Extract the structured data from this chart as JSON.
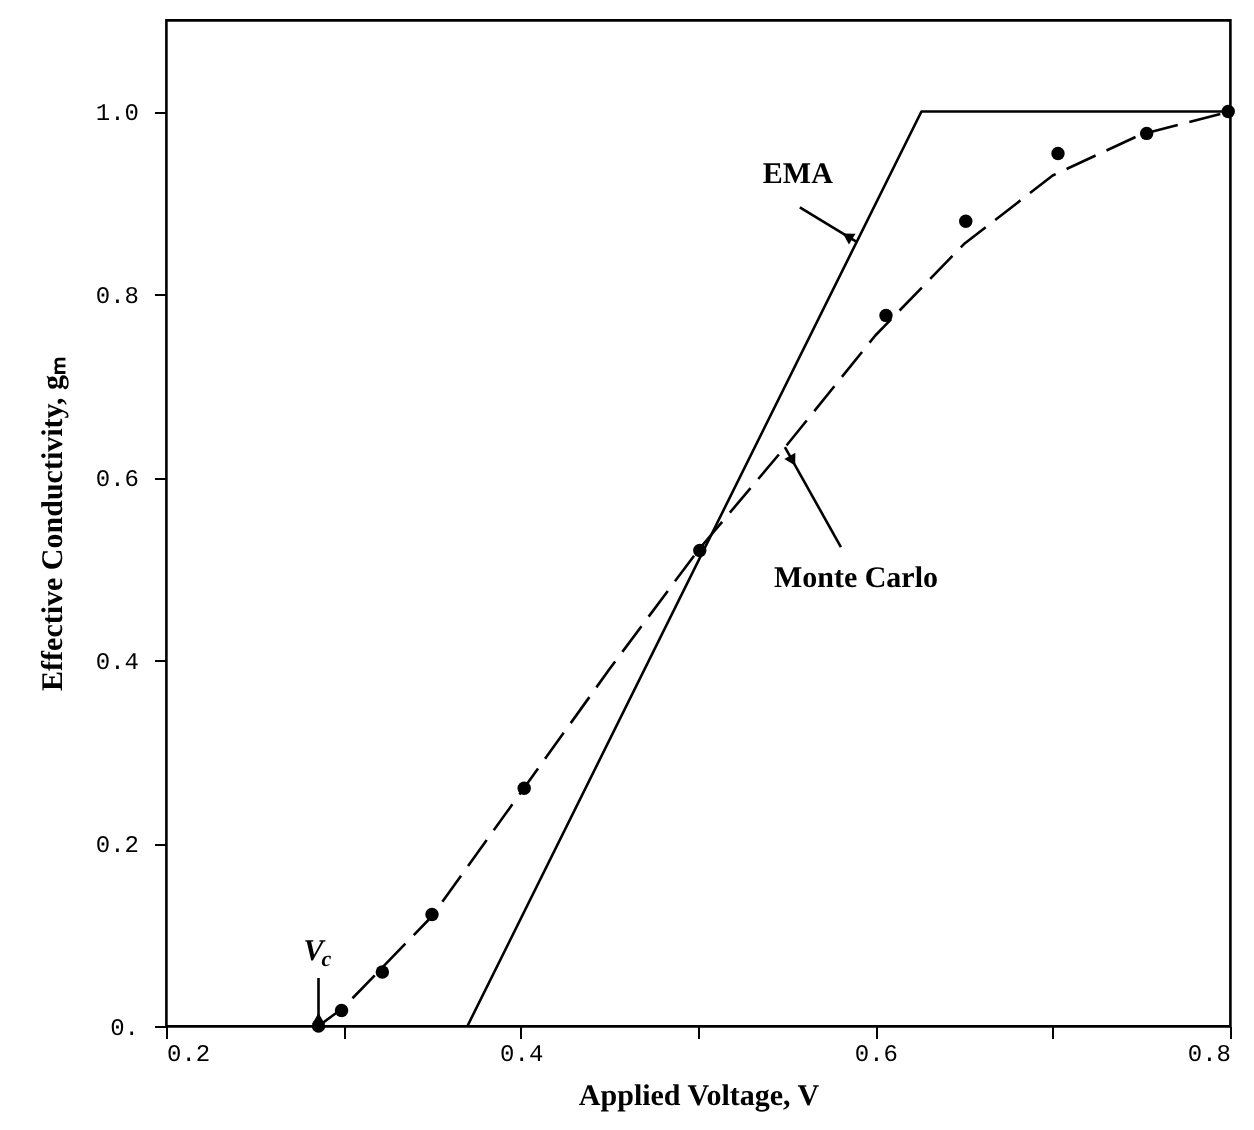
{
  "chart_data": {
    "type": "line",
    "xlabel": "Applied Voltage, V",
    "ylabel": "Effective Conductivity, gₘ",
    "xlim": [
      0.2,
      0.8
    ],
    "ylim": [
      0,
      1.1
    ],
    "xticks": [
      0.2,
      {
        "value": 0.3,
        "label": null
      },
      0.4,
      {
        "value": 0.5,
        "label": null
      },
      0.6,
      {
        "value": 0.7,
        "label": null
      },
      0.8
    ],
    "yticks": [
      {
        "value": 0,
        "label": "0."
      },
      0.2,
      0.4,
      0.6,
      0.8,
      {
        "value": 1,
        "label": "1.0"
      }
    ],
    "series": [
      {
        "color": "#000000",
        "line_style": "solid",
        "marker": "none",
        "x": [
          0.37,
          0.626,
          0.8
        ],
        "values": [
          0,
          1,
          1
        ]
      },
      {
        "color": "#000000",
        "line_style": "dashed",
        "marker": "none",
        "x": [
          0.286,
          0.3,
          0.35,
          0.4,
          0.45,
          0.5,
          0.55,
          0.6,
          0.65,
          0.7,
          0.75,
          0.8
        ],
        "values": [
          0,
          0.02,
          0.12,
          0.255,
          0.39,
          0.52,
          0.635,
          0.755,
          0.855,
          0.93,
          0.975,
          1.0
        ]
      },
      {
        "type": "scatter",
        "color": "#000000",
        "marker": "circle",
        "x": [
          0.286,
          0.299,
          0.322,
          0.35,
          0.402,
          0.501,
          0.606,
          0.651,
          0.703,
          0.753,
          0.799
        ],
        "values": [
          0,
          0.017,
          0.059,
          0.122,
          0.26,
          0.52,
          0.777,
          0.88,
          0.954,
          0.976,
          1.0
        ]
      }
    ],
    "annotations": [
      {
        "text": "EMA",
        "x": 0.589,
        "y": 0.858
      },
      {
        "text": "Monte Carlo",
        "x": 0.549,
        "y": 0.633
      },
      {
        "text": "V$_{c}$",
        "x": 0.286,
        "y": 0
      }
    ],
    "grid": false
  }
}
